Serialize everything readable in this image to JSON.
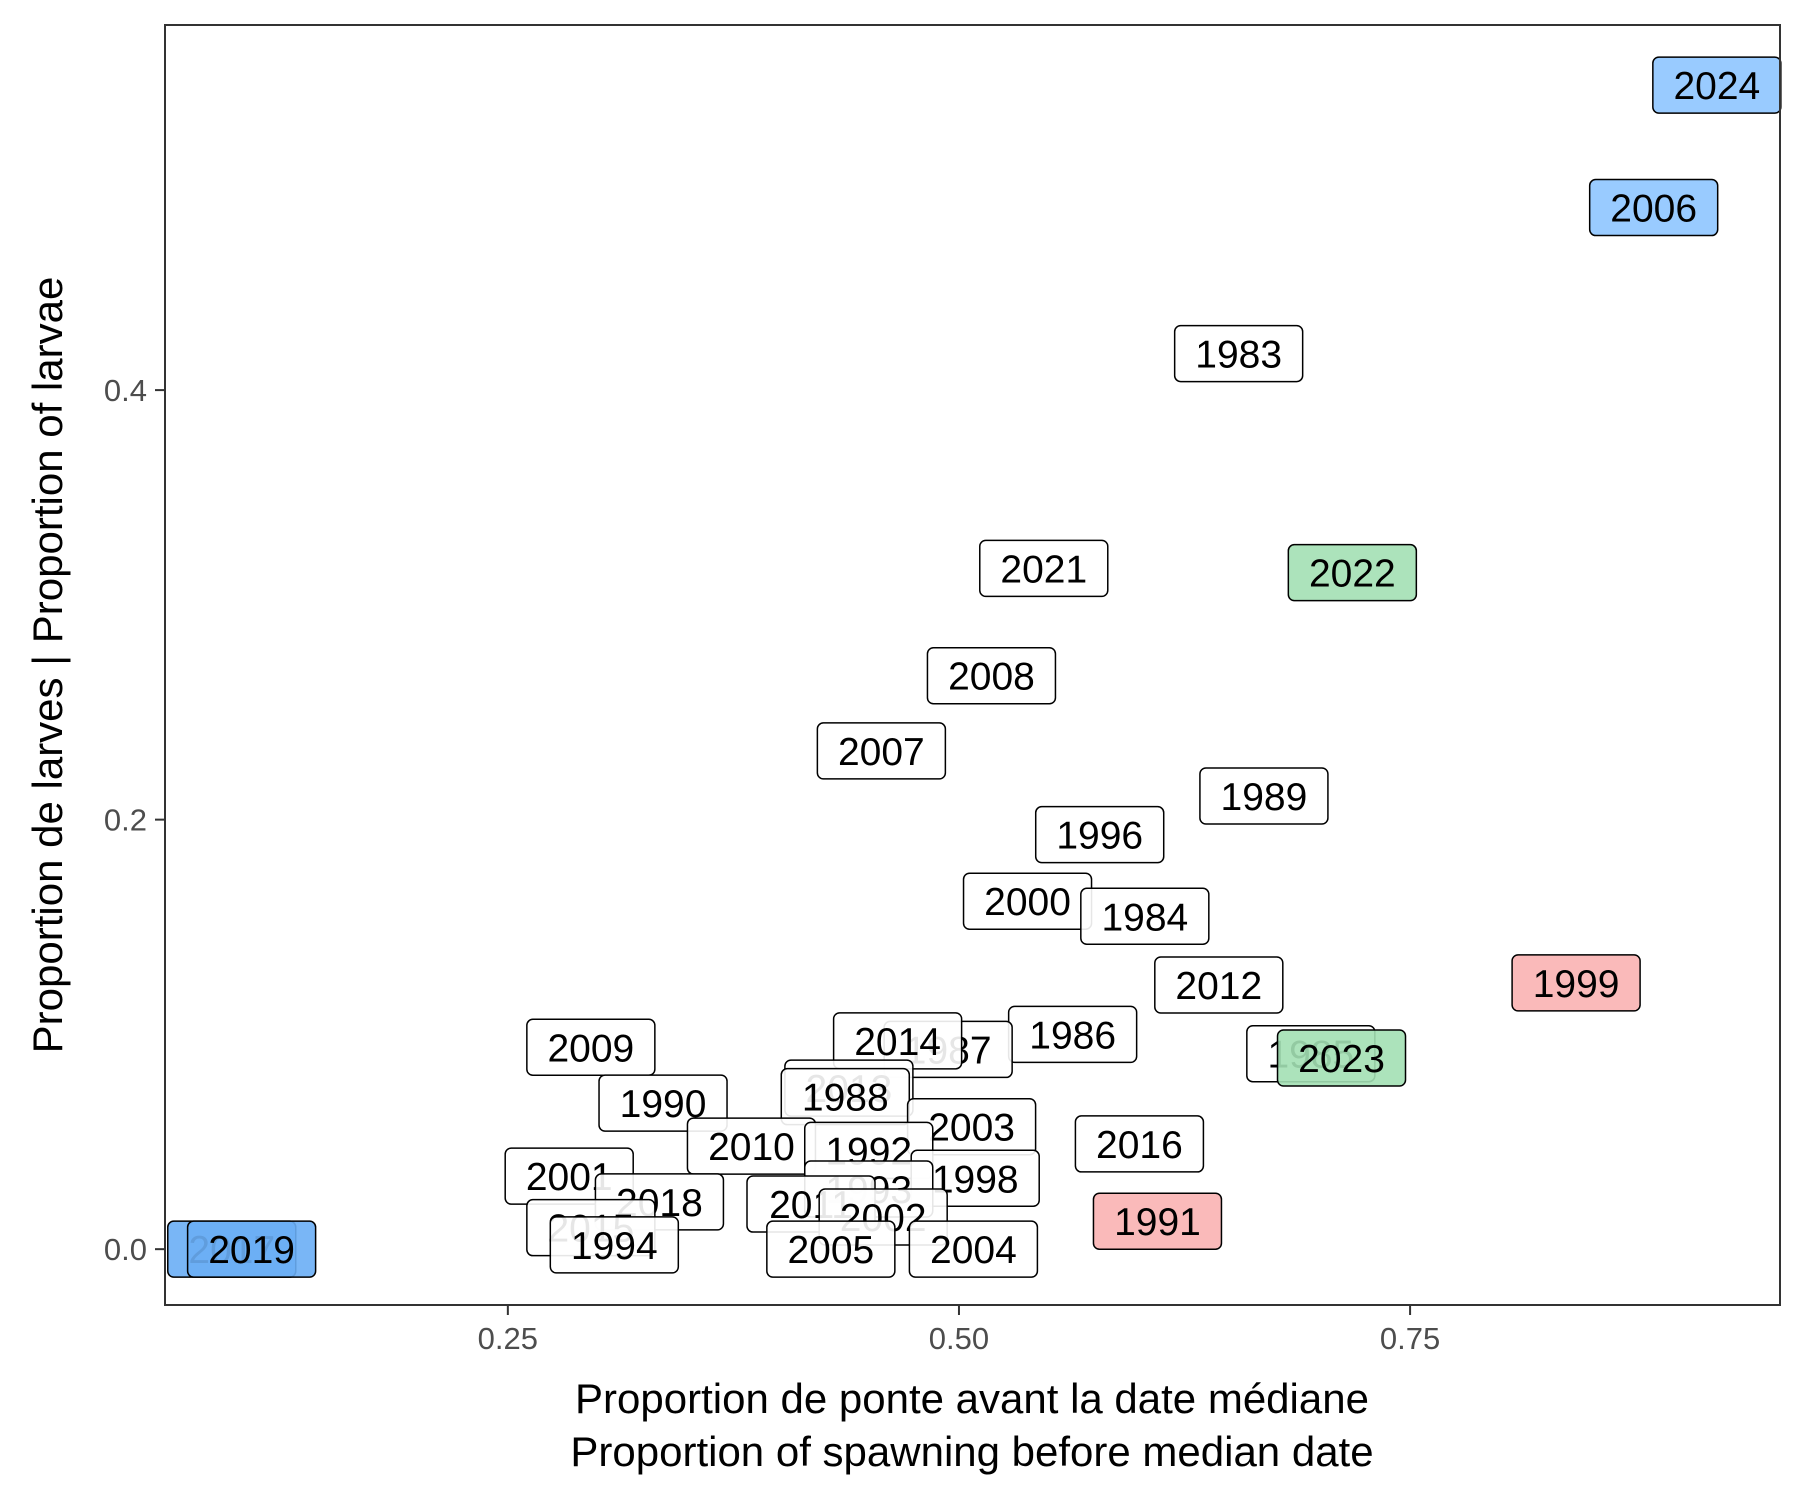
{
  "chart_data": {
    "type": "scatter",
    "title": "",
    "xlabel": [
      "Proportion de ponte avant la date médiane",
      "Proportion of spawning before median date"
    ],
    "ylabel": "Proportion de larves | Proportion of larvae",
    "xlim": [
      0.06,
      0.955
    ],
    "ylim": [
      -0.026,
      0.57
    ],
    "x_ticks": [
      0.25,
      0.5,
      0.75
    ],
    "x_tick_labels": [
      "0.25",
      "0.50",
      "0.75"
    ],
    "y_ticks": [
      0.0,
      0.2,
      0.4
    ],
    "y_tick_labels": [
      "0.0",
      "0.2",
      "0.4"
    ],
    "grid": false,
    "legend": "none",
    "colors": {
      "default": "#ffffff",
      "blue": "#8ec5ff",
      "green": "#a3e0b4",
      "red": "#f9b3b3",
      "dark_blue": "#6aaef5"
    },
    "points": [
      {
        "label": "2024",
        "x": 0.92,
        "y": 0.542,
        "color": "blue"
      },
      {
        "label": "2006",
        "x": 0.885,
        "y": 0.485,
        "color": "blue"
      },
      {
        "label": "1983",
        "x": 0.655,
        "y": 0.417,
        "color": "default"
      },
      {
        "label": "2022",
        "x": 0.718,
        "y": 0.315,
        "color": "green"
      },
      {
        "label": "2021",
        "x": 0.547,
        "y": 0.317,
        "color": "default"
      },
      {
        "label": "2008",
        "x": 0.518,
        "y": 0.267,
        "color": "default"
      },
      {
        "label": "2007",
        "x": 0.457,
        "y": 0.232,
        "color": "default"
      },
      {
        "label": "1989",
        "x": 0.669,
        "y": 0.211,
        "color": "default"
      },
      {
        "label": "1996",
        "x": 0.578,
        "y": 0.193,
        "color": "default"
      },
      {
        "label": "2000",
        "x": 0.538,
        "y": 0.162,
        "color": "default"
      },
      {
        "label": "1984",
        "x": 0.603,
        "y": 0.155,
        "color": "default"
      },
      {
        "label": "2012",
        "x": 0.644,
        "y": 0.123,
        "color": "default"
      },
      {
        "label": "1999",
        "x": 0.842,
        "y": 0.124,
        "color": "red"
      },
      {
        "label": "1986",
        "x": 0.563,
        "y": 0.1,
        "color": "default"
      },
      {
        "label": "1987",
        "x": 0.494,
        "y": 0.093,
        "color": "default"
      },
      {
        "label": "2014",
        "x": 0.466,
        "y": 0.097,
        "color": "default"
      },
      {
        "label": "2009",
        "x": 0.296,
        "y": 0.094,
        "color": "default"
      },
      {
        "label": "1985",
        "x": 0.695,
        "y": 0.091,
        "color": "default"
      },
      {
        "label": "2023",
        "x": 0.712,
        "y": 0.089,
        "color": "green"
      },
      {
        "label": "2013",
        "x": 0.439,
        "y": 0.075,
        "color": "default"
      },
      {
        "label": "1988",
        "x": 0.437,
        "y": 0.071,
        "color": "default"
      },
      {
        "label": "1990",
        "x": 0.336,
        "y": 0.068,
        "color": "default"
      },
      {
        "label": "2003",
        "x": 0.507,
        "y": 0.057,
        "color": "default"
      },
      {
        "label": "2016",
        "x": 0.6,
        "y": 0.049,
        "color": "default"
      },
      {
        "label": "2010",
        "x": 0.385,
        "y": 0.048,
        "color": "default"
      },
      {
        "label": "1992",
        "x": 0.45,
        "y": 0.046,
        "color": "default"
      },
      {
        "label": "2001",
        "x": 0.284,
        "y": 0.034,
        "color": "default"
      },
      {
        "label": "1998",
        "x": 0.509,
        "y": 0.033,
        "color": "default"
      },
      {
        "label": "1993",
        "x": 0.45,
        "y": 0.028,
        "color": "default"
      },
      {
        "label": "2018",
        "x": 0.334,
        "y": 0.022,
        "color": "default"
      },
      {
        "label": "2011",
        "x": 0.418,
        "y": 0.021,
        "color": "default"
      },
      {
        "label": "2002",
        "x": 0.458,
        "y": 0.015,
        "color": "default"
      },
      {
        "label": "1991",
        "x": 0.61,
        "y": 0.013,
        "color": "red"
      },
      {
        "label": "2015",
        "x": 0.296,
        "y": 0.01,
        "color": "default"
      },
      {
        "label": "2017",
        "x": 0.097,
        "y": 0.0,
        "color": "dark_blue"
      },
      {
        "label": "2019",
        "x": 0.108,
        "y": 0.0,
        "color": "dark_blue"
      },
      {
        "label": "1994",
        "x": 0.309,
        "y": 0.002,
        "color": "default"
      },
      {
        "label": "2005",
        "x": 0.429,
        "y": 0.0,
        "color": "default"
      },
      {
        "label": "2004",
        "x": 0.508,
        "y": 0.0,
        "color": "default"
      }
    ]
  }
}
